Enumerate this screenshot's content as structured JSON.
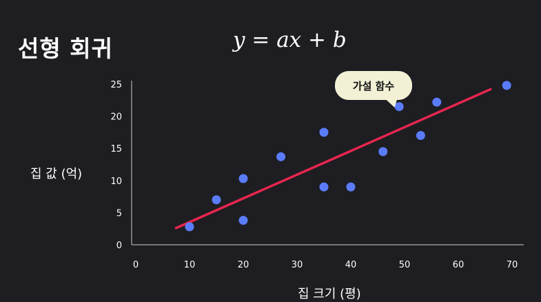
{
  "title": "선형 회귀",
  "formula": "y = ax + b",
  "annotation": "가설 함수",
  "chart_data": {
    "type": "scatter",
    "xlabel": "집 크기 (평)",
    "ylabel": "집 값 (억)",
    "xlim": [
      0,
      70
    ],
    "ylim": [
      0,
      25
    ],
    "x_ticks": [
      0,
      10,
      20,
      30,
      40,
      50,
      60,
      70
    ],
    "y_ticks": [
      0,
      5,
      10,
      15,
      20,
      25
    ],
    "grid": false,
    "point_color": "#5b7cfa",
    "line_color": "#e8264e",
    "points": [
      {
        "x": 10,
        "y": 2.8
      },
      {
        "x": 15,
        "y": 7
      },
      {
        "x": 20,
        "y": 3.8
      },
      {
        "x": 20,
        "y": 10.3
      },
      {
        "x": 27,
        "y": 13.7
      },
      {
        "x": 35,
        "y": 17.5
      },
      {
        "x": 35,
        "y": 9
      },
      {
        "x": 40,
        "y": 9
      },
      {
        "x": 46,
        "y": 14.5
      },
      {
        "x": 49,
        "y": 21.5
      },
      {
        "x": 53,
        "y": 17
      },
      {
        "x": 56,
        "y": 22.2
      },
      {
        "x": 69,
        "y": 24.8
      }
    ],
    "hypothesis_line": {
      "x": [
        7.5,
        66
      ],
      "y": [
        2.6,
        24.2
      ]
    }
  }
}
